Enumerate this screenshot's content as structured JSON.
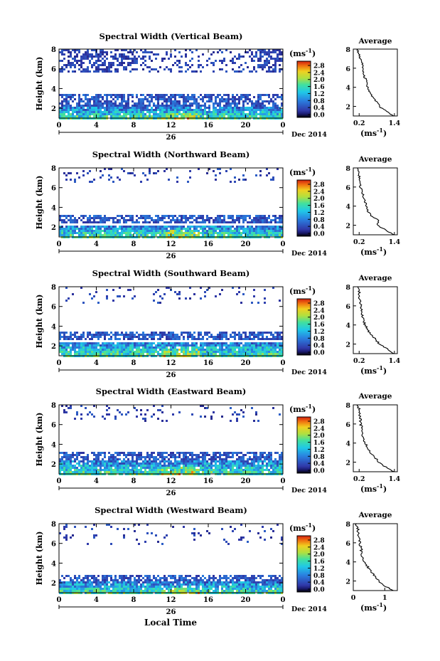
{
  "figure": {
    "bottom_label": "Local Time",
    "colorbar_unit": "(ms",
    "unit_exp": "-1",
    "colorbar_ticks": [
      "2.8",
      "2.4",
      "2.0",
      "1.6",
      "1.2",
      "0.8",
      "0.4",
      "0.0"
    ],
    "avg_title": "Average",
    "avg_xlabel": "(ms",
    "ylabel": "Height (km)",
    "x_ticks": [
      "0",
      "4",
      "8",
      "12",
      "16",
      "20",
      "0"
    ],
    "day_label": "26",
    "month_label": "Dec 2014"
  },
  "chart_data": [
    {
      "type": "heatmap",
      "title": "Spectral Width (Vertical Beam)",
      "ylabel": "Height (km)",
      "xlabel": "Local Time",
      "x_range": [
        0,
        24
      ],
      "y_range": [
        1,
        8
      ],
      "y_ticks": [
        "2",
        "4",
        "6",
        "8"
      ],
      "colorbar_range": [
        0.0,
        2.8
      ],
      "colorbar_label": "(ms-1)",
      "coverage": {
        "upper_layer_km": [
          5.7,
          8.0
        ],
        "mid_layer_km": [
          2.2,
          3.5
        ],
        "low_layer_km": [
          1.0,
          2.2
        ]
      },
      "average_profile": {
        "title": "Average",
        "x_ticks": [
          "0.2",
          "1.4"
        ],
        "x_range": [
          0.0,
          1.5
        ],
        "height_km": [
          1.0,
          1.5,
          2.0,
          2.5,
          3.0,
          3.5,
          4.0,
          4.5,
          5.0,
          5.5,
          6.0,
          6.5,
          7.0,
          7.5,
          8.0
        ],
        "width_ms": [
          1.4,
          1.1,
          0.9,
          0.8,
          0.65,
          0.55,
          0.5,
          0.45,
          0.4,
          0.35,
          0.3,
          0.3,
          0.25,
          0.2,
          0.15
        ]
      }
    },
    {
      "type": "heatmap",
      "title": "Spectral Width (Northward Beam)",
      "ylabel": "Height (km)",
      "xlabel": "Local Time",
      "x_range": [
        0,
        24
      ],
      "y_range": [
        1,
        8
      ],
      "y_ticks": [
        "2",
        "4",
        "6",
        "8"
      ],
      "colorbar_range": [
        0.0,
        2.8
      ],
      "colorbar_label": "(ms-1)",
      "coverage": {
        "upper_layer_km": [
          6.5,
          8.0
        ],
        "mid_layer_km": [
          2.5,
          3.3
        ],
        "low_layer_km": [
          1.0,
          2.3
        ]
      },
      "average_profile": {
        "title": "Average",
        "x_ticks": [
          "0.2",
          "1.4"
        ],
        "x_range": [
          0.0,
          1.5
        ],
        "height_km": [
          1.0,
          1.5,
          2.0,
          2.5,
          3.0,
          3.5,
          4.0,
          4.5,
          5.0,
          5.5,
          6.0,
          6.5,
          7.0,
          7.5,
          8.0
        ],
        "width_ms": [
          1.4,
          1.1,
          0.8,
          0.9,
          0.6,
          0.5,
          0.45,
          0.4,
          0.35,
          0.3,
          0.25,
          0.25,
          0.2,
          0.2,
          0.15
        ]
      }
    },
    {
      "type": "heatmap",
      "title": "Spectral Width (Southward Beam)",
      "ylabel": "Height (km)",
      "xlabel": "Local Time",
      "x_range": [
        0,
        24
      ],
      "y_range": [
        1,
        8
      ],
      "y_ticks": [
        "2",
        "4",
        "6",
        "8"
      ],
      "colorbar_range": [
        0.0,
        2.8
      ],
      "colorbar_label": "(ms-1)",
      "coverage": {
        "upper_layer_km": [
          6.3,
          8.0
        ],
        "mid_layer_km": [
          2.7,
          3.6
        ],
        "low_layer_km": [
          1.0,
          2.5
        ]
      },
      "average_profile": {
        "title": "Average",
        "x_ticks": [
          "0.2",
          "1.4"
        ],
        "x_range": [
          0.0,
          1.5
        ],
        "height_km": [
          1.0,
          1.5,
          2.0,
          2.5,
          3.0,
          3.5,
          4.0,
          4.5,
          5.0,
          5.5,
          6.0,
          6.5,
          7.0,
          7.5,
          8.0
        ],
        "width_ms": [
          1.4,
          1.15,
          0.9,
          0.75,
          0.6,
          0.5,
          0.4,
          0.35,
          0.3,
          0.3,
          0.25,
          0.25,
          0.2,
          0.2,
          0.15
        ]
      }
    },
    {
      "type": "heatmap",
      "title": "Spectral Width (Eastward Beam)",
      "ylabel": "Height (km)",
      "xlabel": "Local Time",
      "x_range": [
        0,
        24
      ],
      "y_range": [
        1,
        8
      ],
      "y_ticks": [
        "2",
        "4",
        "6",
        "8"
      ],
      "colorbar_range": [
        0.0,
        2.8
      ],
      "colorbar_label": "(ms-1)",
      "coverage": {
        "upper_layer_km": [
          6.3,
          8.0
        ],
        "mid_layer_km": [
          2.5,
          3.4
        ],
        "low_layer_km": [
          1.0,
          2.4
        ]
      },
      "average_profile": {
        "title": "Average",
        "x_ticks": [
          "0.2",
          "1.4"
        ],
        "x_range": [
          0.0,
          1.5
        ],
        "height_km": [
          1.0,
          1.5,
          2.0,
          2.5,
          3.0,
          3.5,
          4.0,
          4.5,
          5.0,
          5.5,
          6.0,
          6.5,
          7.0,
          7.5,
          8.0
        ],
        "width_ms": [
          1.4,
          1.1,
          0.85,
          0.75,
          0.6,
          0.5,
          0.4,
          0.35,
          0.3,
          0.3,
          0.25,
          0.25,
          0.2,
          0.2,
          0.15
        ]
      }
    },
    {
      "type": "heatmap",
      "title": "Spectral Width (Westward Beam)",
      "ylabel": "Height (km)",
      "xlabel": "Local Time",
      "x_range": [
        0,
        24
      ],
      "y_range": [
        1,
        8
      ],
      "y_ticks": [
        "2",
        "4",
        "6",
        "8"
      ],
      "colorbar_range": [
        0.0,
        2.8
      ],
      "colorbar_label": "(ms-1)",
      "coverage": {
        "upper_layer_km": [
          6.0,
          8.0
        ],
        "mid_layer_km": [
          2.2,
          2.9
        ],
        "low_layer_km": [
          1.0,
          2.2
        ]
      },
      "average_profile": {
        "title": "Average",
        "x_ticks": [
          "0",
          "1"
        ],
        "x_range": [
          0.0,
          1.4
        ],
        "height_km": [
          1.0,
          1.5,
          2.0,
          2.5,
          3.0,
          3.5,
          4.0,
          4.5,
          5.0,
          5.5,
          6.0,
          6.5,
          7.0,
          7.5,
          8.0
        ],
        "width_ms": [
          1.25,
          1.0,
          0.8,
          0.7,
          0.55,
          0.45,
          0.35,
          0.3,
          0.25,
          0.25,
          0.2,
          0.2,
          0.15,
          0.15,
          0.1
        ]
      }
    }
  ]
}
